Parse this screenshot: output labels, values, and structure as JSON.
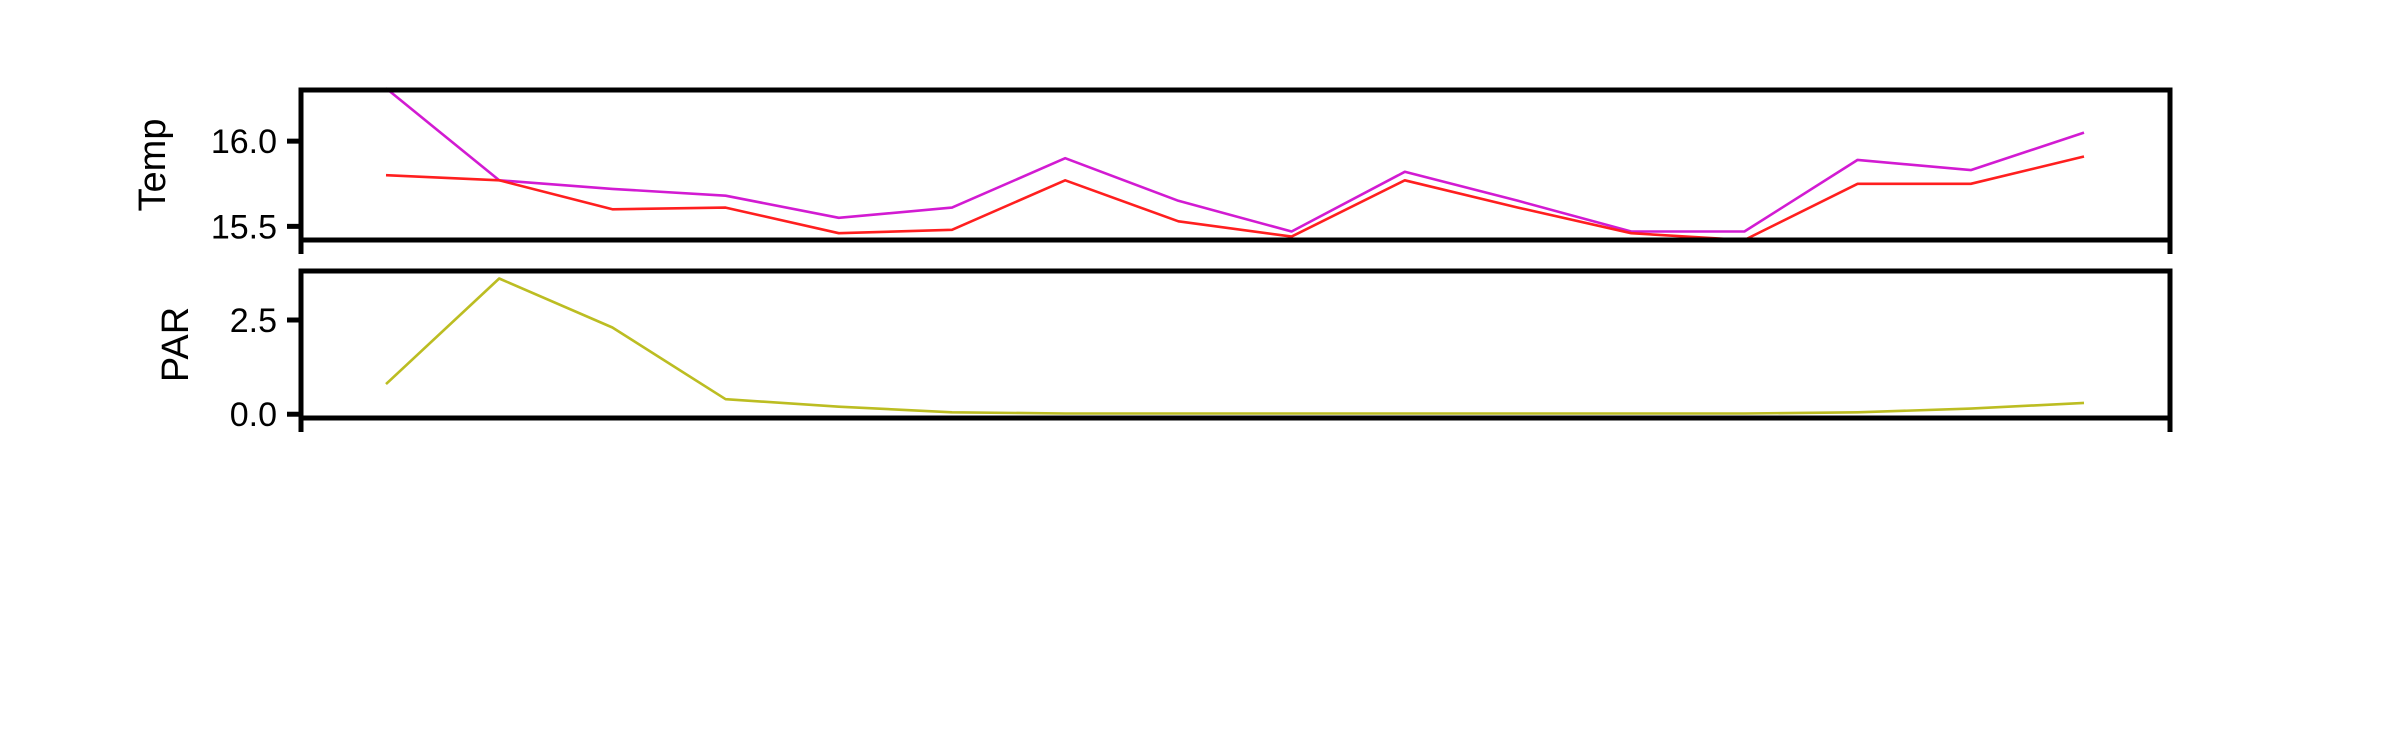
{
  "chart_data": [
    {
      "type": "line",
      "ylabel": "Temp",
      "ylim": [
        15.42,
        16.3
      ],
      "yticks": [
        "15.5",
        "16.0"
      ],
      "ytick_values": [
        15.5,
        16.0
      ],
      "x": [
        1,
        2,
        3,
        4,
        5,
        6,
        7,
        8,
        9,
        10,
        11,
        12,
        13,
        14,
        15,
        16
      ],
      "series": [
        {
          "color": "#d21bd2",
          "values": [
            16.31,
            15.77,
            15.72,
            15.68,
            15.55,
            15.61,
            15.9,
            15.65,
            15.47,
            15.82,
            15.65,
            15.47,
            15.47,
            15.89,
            15.83,
            16.05
          ]
        },
        {
          "color": "#ff1f1f",
          "values": [
            15.8,
            15.77,
            15.6,
            15.61,
            15.46,
            15.48,
            15.77,
            15.53,
            15.44,
            15.77,
            15.61,
            15.46,
            15.42,
            15.75,
            15.75,
            15.91
          ]
        }
      ]
    },
    {
      "type": "line",
      "ylabel": "PAR",
      "ylim": [
        -0.1,
        3.8
      ],
      "yticks": [
        "0.0",
        "2.5"
      ],
      "ytick_values": [
        0.0,
        2.5
      ],
      "x": [
        1,
        2,
        3,
        4,
        5,
        6,
        7,
        8,
        9,
        10,
        11,
        12,
        13,
        14,
        15,
        16
      ],
      "series": [
        {
          "color": "#bcbd22",
          "values": [
            0.8,
            3.6,
            2.3,
            0.4,
            0.2,
            0.05,
            0.02,
            0.02,
            0.02,
            0.02,
            0.02,
            0.02,
            0.02,
            0.05,
            0.15,
            0.3
          ]
        }
      ]
    }
  ]
}
